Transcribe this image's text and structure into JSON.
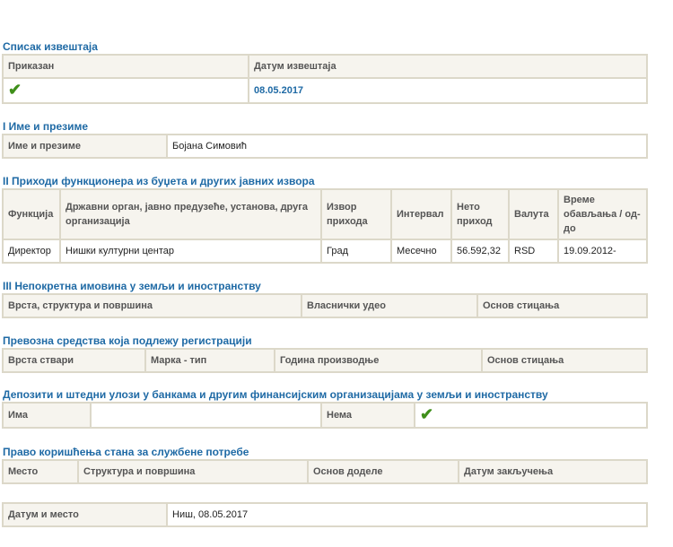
{
  "report_list": {
    "title": "Списак извештаја",
    "headers": [
      "Приказан",
      "Датум извештаја"
    ],
    "shown_icon": "check-icon",
    "date": "08.05.2017"
  },
  "name_section": {
    "title": "I Име и презиме",
    "label": "Име и презиме",
    "value": "Бојана Симовић"
  },
  "income": {
    "title": "II Приходи функционера из буџета и других јавних извора",
    "headers": [
      "Функција",
      "Државни орган, јавно предузеће, установа, друга организација",
      "Извор прихода",
      "Интервал",
      "Нето приход",
      "Валута",
      "Време обављања / од-до"
    ],
    "rows": [
      [
        "Директор",
        "Нишки културни центар",
        "Град",
        "Месечно",
        "56.592,32",
        "RSD",
        "19.09.2012-"
      ]
    ]
  },
  "real_estate": {
    "title": "III Непокретна имовина у земљи и иностранству",
    "headers": [
      "Врста, структура и површина",
      "Власнички удео",
      "Основ стицања"
    ]
  },
  "vehicles": {
    "title": "Превозна средства која подлежу регистрацији",
    "headers": [
      "Врста ствари",
      "Марка - тип",
      "Година производње",
      "Основ стицања"
    ]
  },
  "deposits": {
    "title": "Депозити и штедни улози у банкама и другим финансијским организацијама у земљи и иностранству",
    "has_label": "Има",
    "has_value": "",
    "none_label": "Нема",
    "none_icon": "check-icon"
  },
  "housing": {
    "title": "Право коришћења стана за службене потребе",
    "headers": [
      "Место",
      "Структура и површина",
      "Основ доделе",
      "Датум закључења"
    ]
  },
  "footer": {
    "label": "Датум и место",
    "value": "Ниш, 08.05.2017"
  },
  "colors": {
    "title": "#1f6aa5",
    "header_bg": "#f6f4ee",
    "border": "#dcd8c9",
    "check": "#3f8f1a"
  }
}
